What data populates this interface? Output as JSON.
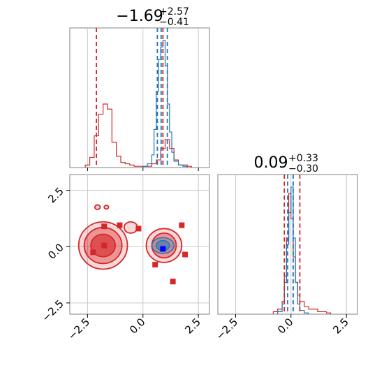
{
  "chart_data": {
    "type": "corner",
    "colors": {
      "red": "#d62728",
      "blue": "#1f77b4",
      "axes": "#808080",
      "grid": "#c8c8c8"
    },
    "parameters": [
      {
        "title_main": "−1.69",
        "title_sup": "+2.57",
        "title_sub": "−0.41"
      },
      {
        "title_main": "0.09",
        "title_sup": "+0.33",
        "title_sub": "−0.30"
      }
    ],
    "range_x": [
      -3.3,
      3.0
    ],
    "range_y": [
      -3.0,
      3.2
    ],
    "ticks": [
      -2.5,
      0.0,
      2.5
    ],
    "tick_labels": [
      "−2.5",
      "0.0",
      "2.5"
    ],
    "grid": true,
    "hist1": {
      "red_series": {
        "name": "",
        "bins": [
          -2.6,
          -2.4,
          -2.2,
          -2.0,
          -1.8,
          -1.6,
          -1.4,
          -1.2,
          -1.0,
          -0.8,
          -0.6,
          -0.4,
          0.0,
          0.4,
          0.6,
          0.8,
          1.0,
          1.2,
          1.4,
          1.6,
          2.0
        ],
        "values": [
          0.02,
          0.08,
          0.25,
          0.42,
          0.5,
          0.46,
          0.2,
          0.09,
          0.04,
          0.03,
          0.02,
          0.01,
          0.01,
          0.03,
          0.06,
          0.15,
          0.22,
          0.15,
          0.06,
          0.02,
          0.01
        ]
      },
      "blue_series": {
        "name": "",
        "bins": [
          0.0,
          0.2,
          0.4,
          0.5,
          0.6,
          0.7,
          0.8,
          0.9,
          1.0,
          1.1,
          1.2,
          1.3,
          1.4,
          1.6,
          1.8
        ],
        "values": [
          0.01,
          0.03,
          0.1,
          0.3,
          0.6,
          0.85,
          0.95,
          1.0,
          0.8,
          0.5,
          0.28,
          0.12,
          0.05,
          0.02,
          0.01
        ]
      },
      "red_quantiles": [
        -2.1,
        0.9
      ],
      "blue_quantiles": [
        0.65,
        0.82,
        1.1
      ]
    },
    "hist2": {
      "red_series": {
        "name": "",
        "bins": [
          -0.8,
          -0.6,
          -0.4,
          -0.3,
          -0.2,
          -0.1,
          0.0,
          0.1,
          0.2,
          0.3,
          0.4,
          0.6,
          0.8,
          1.2,
          1.6
        ],
        "values": [
          0.02,
          0.04,
          0.1,
          0.3,
          0.6,
          0.95,
          0.75,
          0.45,
          0.25,
          0.15,
          0.1,
          0.06,
          0.04,
          0.02,
          0.01
        ]
      },
      "blue_series": {
        "name": "",
        "bins": [
          -0.6,
          -0.4,
          -0.3,
          -0.2,
          -0.1,
          0.0,
          0.1,
          0.2,
          0.3,
          0.4,
          0.6
        ],
        "values": [
          0.02,
          0.08,
          0.25,
          0.55,
          0.8,
          1.0,
          0.6,
          0.25,
          0.08,
          0.03,
          0.01
        ]
      },
      "red_quantiles": [
        -0.3,
        0.4
      ],
      "blue_quantiles": [
        -0.15,
        0.1
      ]
    },
    "scatter_2d": {
      "red_contours": [
        {
          "cx": -1.8,
          "cy": 0.05,
          "levels": [
            [
              1.1,
              1.05
            ],
            [
              0.85,
              0.8
            ],
            [
              0.55,
              0.5
            ]
          ]
        },
        {
          "cx": 0.95,
          "cy": 0.05,
          "levels": [
            [
              0.8,
              0.75
            ],
            [
              0.55,
              0.55
            ]
          ]
        },
        {
          "cx": -0.55,
          "cy": 0.85,
          "levels": [
            [
              0.3,
              0.25
            ]
          ]
        },
        {
          "cx": -2.05,
          "cy": 1.75,
          "levels": [
            [
              0.12,
              0.1
            ]
          ]
        },
        {
          "cx": -1.65,
          "cy": 1.75,
          "levels": [
            [
              0.1,
              0.08
            ]
          ]
        }
      ],
      "blue_contours": [
        {
          "cx": 0.9,
          "cy": 0.05,
          "levels": [
            [
              0.5,
              0.35
            ],
            [
              0.3,
              0.22
            ]
          ]
        }
      ],
      "red_markers": [
        {
          "x": -1.75,
          "y": 0.9
        },
        {
          "x": -1.05,
          "y": 0.95
        },
        {
          "x": -0.2,
          "y": 0.8
        },
        {
          "x": 1.75,
          "y": 0.95
        },
        {
          "x": -1.75,
          "y": 0.05
        },
        {
          "x": -2.25,
          "y": -0.25
        },
        {
          "x": 1.9,
          "y": -0.35
        },
        {
          "x": 0.55,
          "y": -0.8
        },
        {
          "x": 1.35,
          "y": -1.55
        }
      ],
      "blue_markers": [
        {
          "x": 0.9,
          "y": -0.1
        }
      ]
    }
  }
}
